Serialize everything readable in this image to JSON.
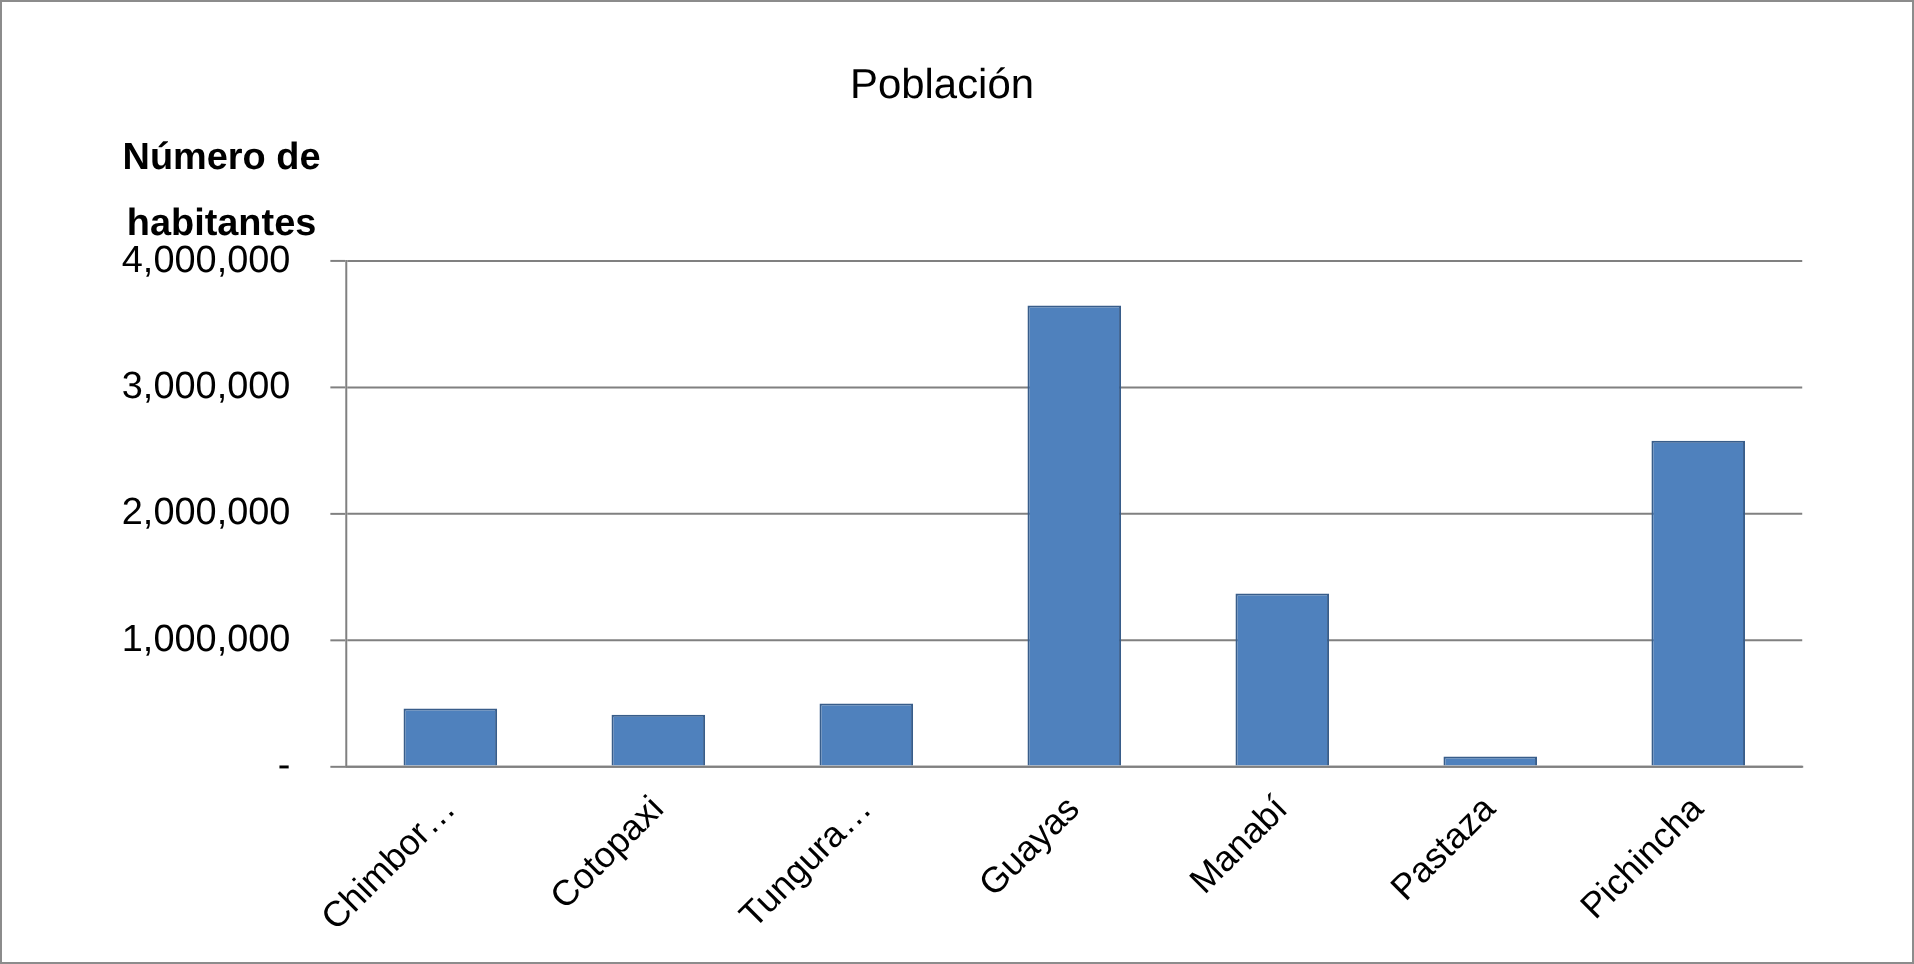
{
  "chart_data": {
    "type": "bar",
    "title": "Población",
    "ylabel": "Número de habitantes",
    "categories": [
      "Chimbor…",
      "Cotopaxi",
      "Tungura…",
      "Guayas",
      "Manabí",
      "Pastaza",
      "Pichincha"
    ],
    "values": [
      460000,
      410000,
      500000,
      3650000,
      1370000,
      80000,
      2580000
    ],
    "color": "#4f81bd",
    "ylim": [
      0,
      4000000
    ],
    "yticks": [
      {
        "value": 0,
        "label": "-"
      },
      {
        "value": 1000000,
        "label": "1,000,000"
      },
      {
        "value": 2000000,
        "label": "2,000,000"
      },
      {
        "value": 3000000,
        "label": "3,000,000"
      },
      {
        "value": 4000000,
        "label": "4,000,000"
      }
    ],
    "grid": "y",
    "legend": false
  }
}
